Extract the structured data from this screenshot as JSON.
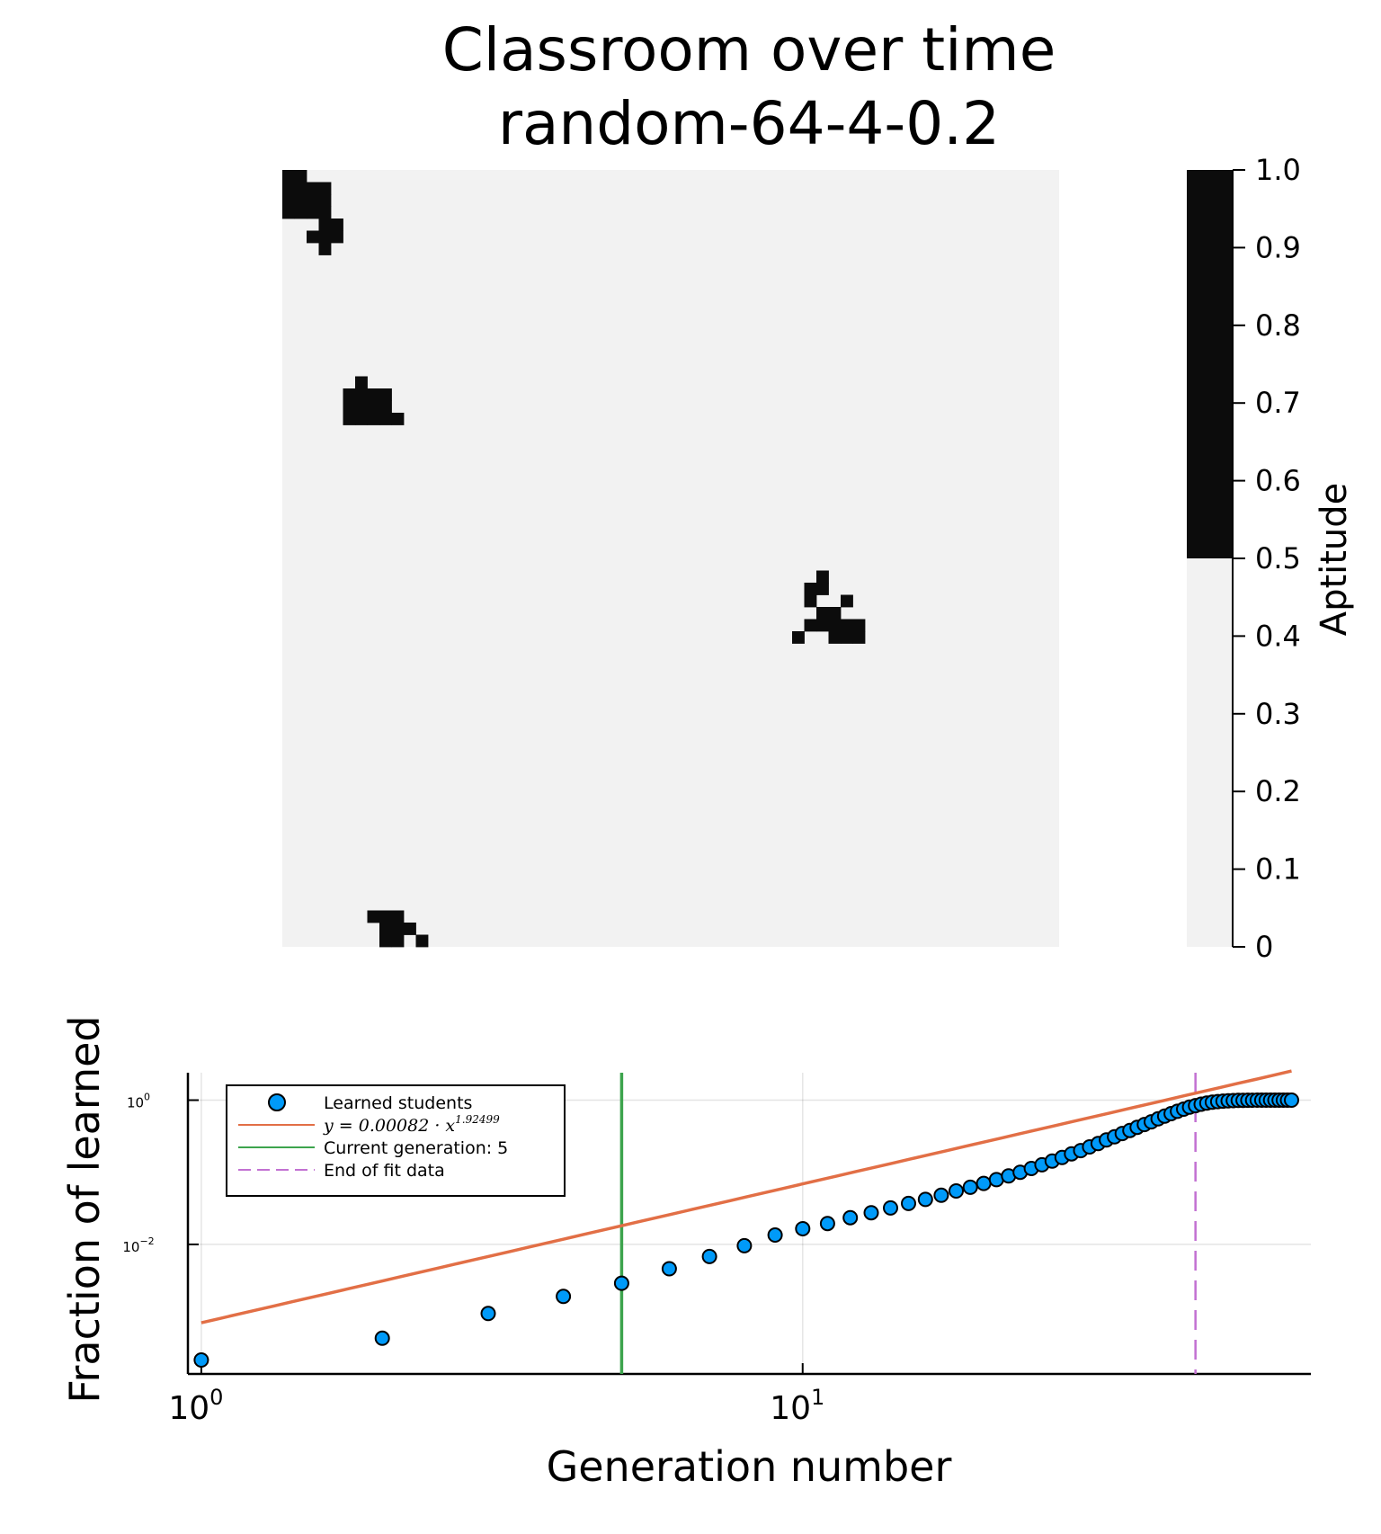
{
  "chart_data": [
    {
      "type": "heatmap",
      "title": "Classroom over time",
      "subtitle": "random-64-4-0.2",
      "grid_size": [
        64,
        64
      ],
      "colorbar": {
        "label": "Aptitude",
        "ticks": [
          "0",
          "0.1",
          "0.2",
          "0.3",
          "0.4",
          "0.5",
          "0.6",
          "0.7",
          "0.8",
          "0.9",
          "1.0"
        ],
        "range": [
          0,
          1
        ],
        "threshold": 0.5,
        "low_color": "#f2f2f2",
        "high_color": "#0c0c0c"
      },
      "learned_cells": [
        [
          0,
          0
        ],
        [
          0,
          1
        ],
        [
          1,
          0
        ],
        [
          1,
          1
        ],
        [
          1,
          2
        ],
        [
          1,
          3
        ],
        [
          2,
          0
        ],
        [
          2,
          1
        ],
        [
          2,
          2
        ],
        [
          2,
          3
        ],
        [
          3,
          0
        ],
        [
          3,
          1
        ],
        [
          3,
          2
        ],
        [
          3,
          3
        ],
        [
          4,
          3
        ],
        [
          4,
          4
        ],
        [
          5,
          2
        ],
        [
          5,
          3
        ],
        [
          5,
          4
        ],
        [
          6,
          3
        ],
        [
          17,
          6
        ],
        [
          18,
          5
        ],
        [
          18,
          6
        ],
        [
          18,
          7
        ],
        [
          18,
          8
        ],
        [
          19,
          5
        ],
        [
          19,
          6
        ],
        [
          19,
          7
        ],
        [
          19,
          8
        ],
        [
          20,
          5
        ],
        [
          20,
          6
        ],
        [
          20,
          7
        ],
        [
          20,
          8
        ],
        [
          20,
          9
        ],
        [
          33,
          44
        ],
        [
          34,
          43
        ],
        [
          34,
          44
        ],
        [
          35,
          43
        ],
        [
          35,
          46
        ],
        [
          36,
          44
        ],
        [
          36,
          45
        ],
        [
          37,
          43
        ],
        [
          37,
          44
        ],
        [
          37,
          45
        ],
        [
          37,
          46
        ],
        [
          37,
          47
        ],
        [
          38,
          42
        ],
        [
          38,
          45
        ],
        [
          38,
          46
        ],
        [
          38,
          47
        ],
        [
          61,
          7
        ],
        [
          61,
          8
        ],
        [
          61,
          9
        ],
        [
          62,
          8
        ],
        [
          62,
          9
        ],
        [
          62,
          10
        ],
        [
          63,
          8
        ],
        [
          63,
          9
        ],
        [
          63,
          11
        ]
      ]
    },
    {
      "type": "scatter",
      "xlabel": "Generation number",
      "ylabel": "Fraction of learned",
      "xscale": "log10",
      "yscale": "log10",
      "xlim": [
        0.95,
        70
      ],
      "ylim": [
        0.00016,
        2.4
      ],
      "x_ticks": [
        {
          "base": "10",
          "exp": "0"
        },
        {
          "base": "10",
          "exp": "1"
        }
      ],
      "y_ticks": [
        {
          "base": "10",
          "exp": "0"
        },
        {
          "base": "10",
          "exp": "−2"
        }
      ],
      "legend": {
        "position": "top-left",
        "entries": [
          {
            "label": "Learned students",
            "color": "#009af9"
          },
          {
            "label": "y = 0.00082 · x^1.92499",
            "color": "#e26f46"
          },
          {
            "label": "Current generation: 5",
            "color": "#3da44d"
          },
          {
            "label": "End of fit data",
            "color": "#c271d2"
          }
        ]
      },
      "fit": {
        "a": 0.00082,
        "b": 1.92499,
        "x_range": [
          1,
          65
        ],
        "color": "#e26f46"
      },
      "current_generation": 5,
      "end_of_fit": 45,
      "series": [
        {
          "name": "Learned students",
          "x": [
            1,
            2,
            3,
            4,
            5,
            6,
            7,
            8,
            9,
            10,
            11,
            12,
            13,
            14,
            15,
            16,
            17,
            18,
            19,
            20,
            21,
            22,
            23,
            24,
            25,
            26,
            27,
            28,
            29,
            30,
            31,
            32,
            33,
            34,
            35,
            36,
            37,
            38,
            39,
            40,
            41,
            42,
            43,
            44,
            45,
            46,
            47,
            48,
            49,
            50,
            51,
            52,
            53,
            54,
            55,
            56,
            57,
            58,
            59,
            60,
            61,
            62,
            63,
            64,
            65
          ],
          "y": [
            0.00025,
            0.0005,
            0.0011,
            0.0019,
            0.0029,
            0.0046,
            0.0068,
            0.0096,
            0.0135,
            0.0165,
            0.0195,
            0.0235,
            0.0275,
            0.032,
            0.037,
            0.042,
            0.048,
            0.055,
            0.062,
            0.07,
            0.079,
            0.089,
            0.1,
            0.113,
            0.127,
            0.143,
            0.16,
            0.18,
            0.2,
            0.225,
            0.25,
            0.28,
            0.31,
            0.345,
            0.38,
            0.42,
            0.46,
            0.5,
            0.55,
            0.6,
            0.65,
            0.7,
            0.75,
            0.8,
            0.84,
            0.88,
            0.91,
            0.935,
            0.955,
            0.97,
            0.98,
            0.987,
            0.992,
            0.995,
            0.997,
            0.998,
            0.999,
            0.9994,
            0.9997,
            0.9999,
            1.0,
            1.0,
            1.0,
            1.0,
            1.0
          ]
        }
      ]
    }
  ]
}
